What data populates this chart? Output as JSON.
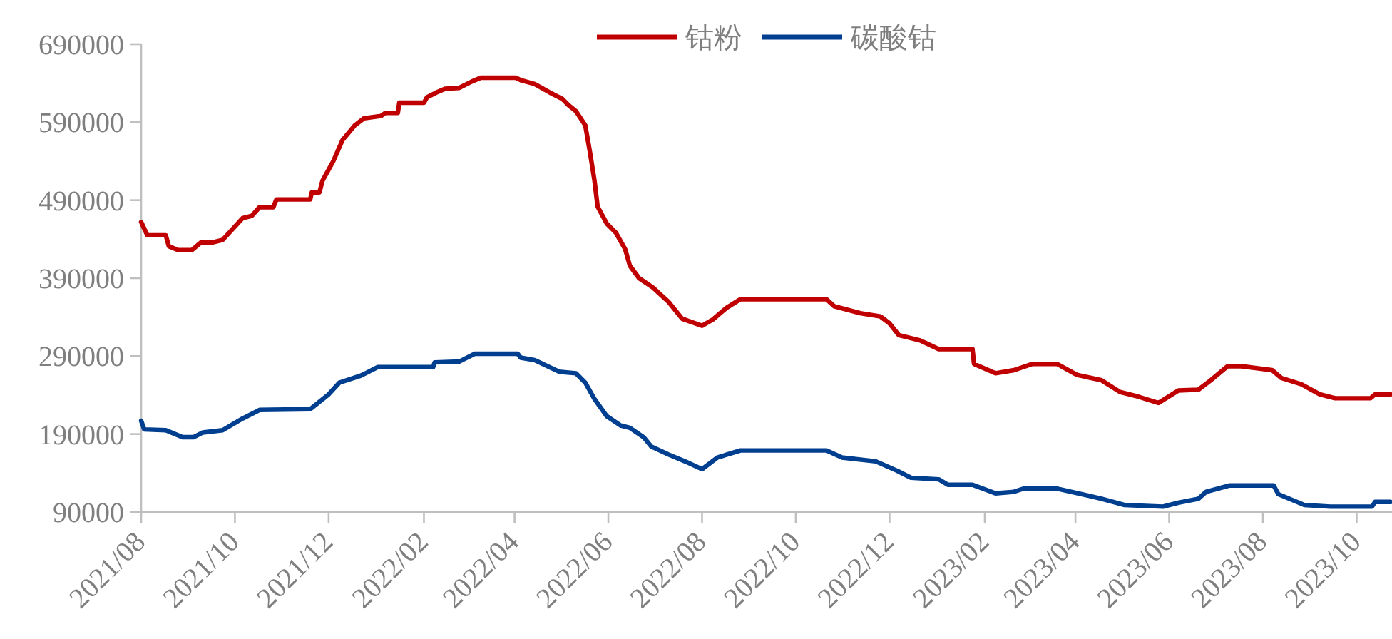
{
  "chart_data": {
    "type": "line",
    "legend": "top",
    "xlim": [
      "2021-08-01",
      "2023-10-24"
    ],
    "ylim": [
      90000,
      690000
    ],
    "yticks": [
      90000,
      190000,
      290000,
      390000,
      490000,
      590000,
      690000
    ],
    "xticks": [
      {
        "value": "2021-08-01",
        "label": "2021/08"
      },
      {
        "value": "2021-10-01",
        "label": "2021/10"
      },
      {
        "value": "2021-12-01",
        "label": "2021/12"
      },
      {
        "value": "2022-02-01",
        "label": "2022/02"
      },
      {
        "value": "2022-04-01",
        "label": "2022/04"
      },
      {
        "value": "2022-06-01",
        "label": "2022/06"
      },
      {
        "value": "2022-08-01",
        "label": "2022/08"
      },
      {
        "value": "2022-10-01",
        "label": "2022/10"
      },
      {
        "value": "2022-12-01",
        "label": "2022/12"
      },
      {
        "value": "2023-02-01",
        "label": "2023/02"
      },
      {
        "value": "2023-04-01",
        "label": "2023/04"
      },
      {
        "value": "2023-06-01",
        "label": "2023/06"
      },
      {
        "value": "2023-08-01",
        "label": "2023/08"
      },
      {
        "value": "2023-10-01",
        "label": "2023/10"
      }
    ],
    "series": [
      {
        "name": "钴粉",
        "color": "#c00000",
        "x": [
          "2021-08-01",
          "2021-08-05",
          "2021-08-17",
          "2021-08-19",
          "2021-08-25",
          "2021-09-03",
          "2021-09-09",
          "2021-09-17",
          "2021-09-23",
          "2021-10-06",
          "2021-10-12",
          "2021-10-17",
          "2021-10-26",
          "2021-10-28",
          "2021-11-19",
          "2021-11-20",
          "2021-11-25",
          "2021-11-27",
          "2021-12-04",
          "2021-12-10",
          "2021-12-18",
          "2021-12-24",
          "2022-01-04",
          "2022-01-07",
          "2022-01-15",
          "2022-01-16",
          "2022-02-01",
          "2022-02-03",
          "2022-02-09",
          "2022-02-15",
          "2022-02-24",
          "2022-03-04",
          "2022-03-10",
          "2022-04-02",
          "2022-04-05",
          "2022-04-14",
          "2022-04-24",
          "2022-05-02",
          "2022-05-06",
          "2022-05-11",
          "2022-05-17",
          "2022-05-20",
          "2022-05-23",
          "2022-05-25",
          "2022-05-31",
          "2022-06-06",
          "2022-06-12",
          "2022-06-15",
          "2022-06-21",
          "2022-06-30",
          "2022-07-10",
          "2022-07-19",
          "2022-08-01",
          "2022-08-08",
          "2022-08-17",
          "2022-08-26",
          "2022-10-21",
          "2022-10-26",
          "2022-11-12",
          "2022-11-25",
          "2022-12-01",
          "2022-12-07",
          "2022-12-21",
          "2023-01-02",
          "2023-01-24",
          "2023-01-25",
          "2023-02-08",
          "2023-02-20",
          "2023-03-04",
          "2023-03-20",
          "2023-04-02",
          "2023-04-18",
          "2023-04-30",
          "2023-05-12",
          "2023-05-25",
          "2023-06-07",
          "2023-06-20",
          "2023-06-28",
          "2023-07-09",
          "2023-07-18",
          "2023-08-07",
          "2023-08-13",
          "2023-08-26",
          "2023-09-07",
          "2023-09-17",
          "2023-10-10",
          "2023-10-13",
          "2023-10-23"
        ],
        "values": [
          462000,
          445000,
          445000,
          431000,
          426000,
          426000,
          436000,
          436000,
          439000,
          467000,
          470000,
          481000,
          481000,
          491000,
          491000,
          500000,
          500000,
          515000,
          540000,
          567000,
          586000,
          595000,
          598000,
          602000,
          602000,
          615000,
          615000,
          622000,
          628000,
          633000,
          634000,
          642000,
          647000,
          647000,
          644000,
          639000,
          628000,
          620000,
          612000,
          604000,
          586000,
          552000,
          515000,
          482000,
          460000,
          448000,
          427000,
          406000,
          390000,
          378000,
          360000,
          338000,
          329000,
          337000,
          352000,
          363000,
          363000,
          354000,
          345000,
          341000,
          332000,
          317000,
          310000,
          299000,
          299000,
          280000,
          268000,
          272000,
          280000,
          280000,
          266000,
          259000,
          244000,
          238000,
          230000,
          246000,
          247000,
          259000,
          277000,
          277000,
          272000,
          262000,
          254000,
          241000,
          236000,
          236000,
          241000,
          241000
        ]
      },
      {
        "name": "碳酸钴",
        "color": "#003f8f",
        "x": [
          "2021-08-01",
          "2021-08-03",
          "2021-08-17",
          "2021-08-28",
          "2021-09-04",
          "2021-09-10",
          "2021-09-23",
          "2021-10-06",
          "2021-10-17",
          "2021-11-19",
          "2021-12-01",
          "2021-12-08",
          "2021-12-22",
          "2022-01-02",
          "2022-02-07",
          "2022-02-08",
          "2022-02-24",
          "2022-03-06",
          "2022-04-03",
          "2022-04-05",
          "2022-04-14",
          "2022-04-30",
          "2022-05-11",
          "2022-05-17",
          "2022-05-23",
          "2022-05-31",
          "2022-06-09",
          "2022-06-15",
          "2022-06-24",
          "2022-06-29",
          "2022-07-10",
          "2022-07-21",
          "2022-08-01",
          "2022-08-11",
          "2022-08-26",
          "2022-10-21",
          "2022-10-31",
          "2022-11-22",
          "2022-12-06",
          "2022-12-15",
          "2023-01-02",
          "2023-01-08",
          "2023-01-24",
          "2023-02-08",
          "2023-02-20",
          "2023-02-26",
          "2023-03-20",
          "2023-04-05",
          "2023-04-18",
          "2023-05-03",
          "2023-05-28",
          "2023-06-07",
          "2023-06-20",
          "2023-06-25",
          "2023-07-10",
          "2023-08-08",
          "2023-08-11",
          "2023-08-28",
          "2023-09-14",
          "2023-10-11",
          "2023-10-13",
          "2023-10-23"
        ],
        "values": [
          207000,
          196000,
          195000,
          186000,
          186000,
          192000,
          195000,
          210000,
          221000,
          222000,
          241000,
          256000,
          265000,
          276000,
          276000,
          282000,
          283000,
          293000,
          293000,
          288000,
          285000,
          270000,
          268000,
          256000,
          235000,
          213000,
          201000,
          198000,
          186000,
          174000,
          164000,
          155000,
          145000,
          160000,
          169000,
          169000,
          160000,
          155000,
          143000,
          134000,
          132000,
          125000,
          125000,
          114000,
          116000,
          120000,
          120000,
          113000,
          107000,
          99000,
          97000,
          102000,
          107000,
          116000,
          124000,
          124000,
          113000,
          99000,
          97000,
          97000,
          103000,
          103000
        ]
      }
    ]
  }
}
